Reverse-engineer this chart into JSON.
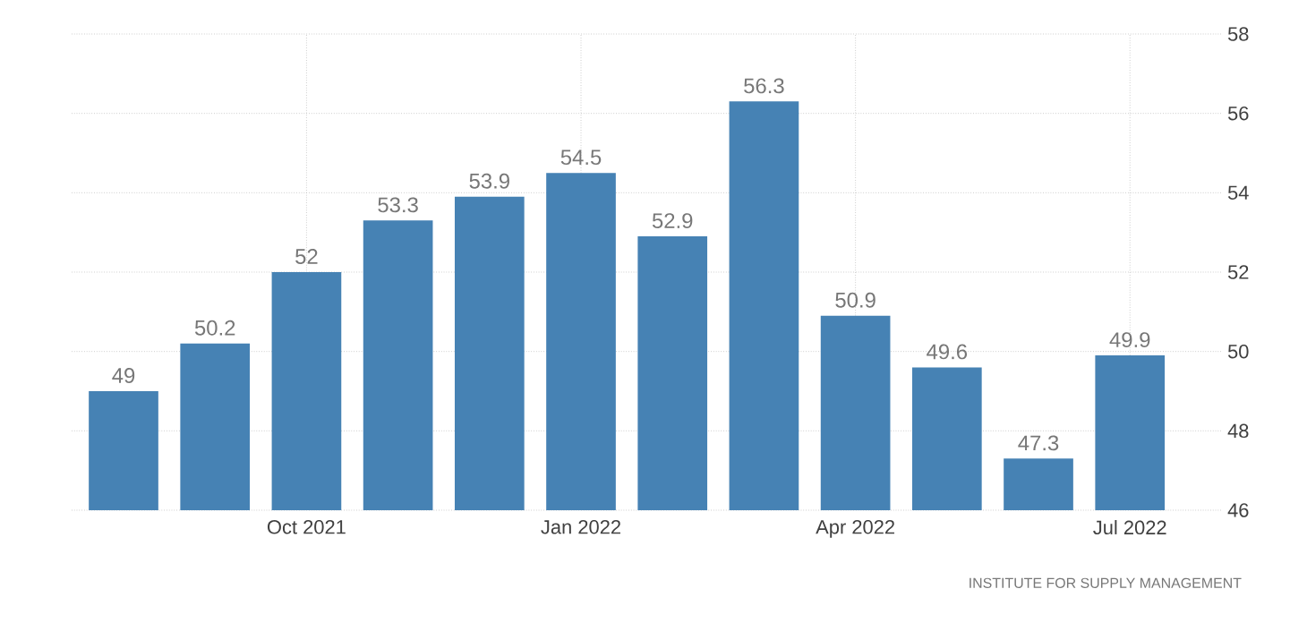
{
  "chart_data": {
    "type": "bar",
    "categories": [
      null,
      null,
      "Oct 2021",
      null,
      null,
      "Jan 2022",
      null,
      null,
      "Apr 2022",
      null,
      null,
      "Jul 2022"
    ],
    "values": [
      49,
      50.2,
      52,
      53.3,
      53.9,
      54.5,
      52.9,
      56.3,
      50.9,
      49.6,
      47.3,
      49.9
    ],
    "color": "#4682b4",
    "ylim": [
      46,
      58
    ],
    "yticks": [
      46,
      48,
      50,
      52,
      54,
      56,
      58
    ],
    "grid": true,
    "data_labels": true,
    "annotations": [
      "INSTITUTE FOR SUPPLY MANAGEMENT"
    ]
  }
}
